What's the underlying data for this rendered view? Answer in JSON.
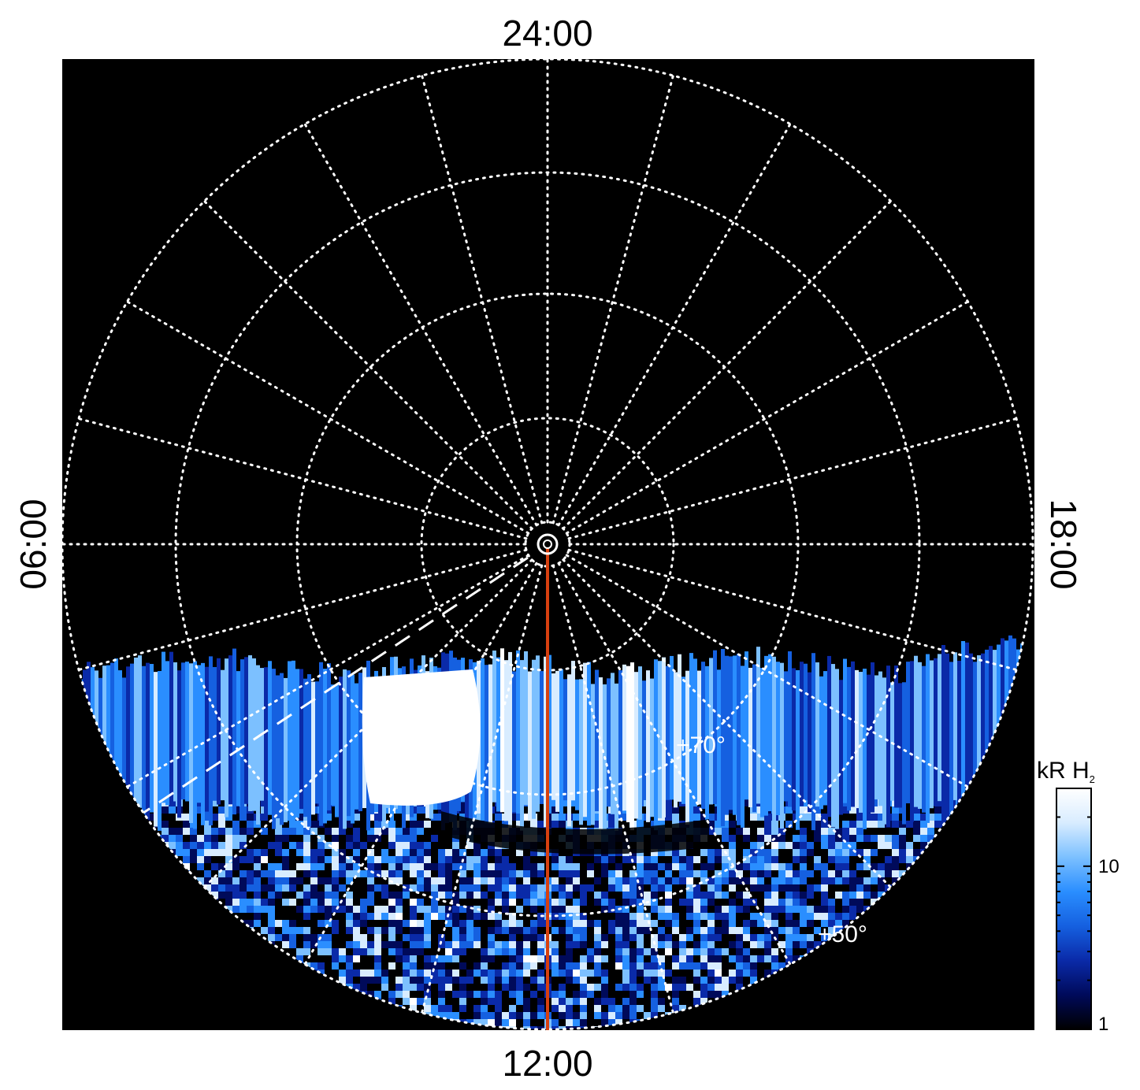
{
  "map": {
    "background": "#000000",
    "grid_color": "#ffffff",
    "meridian_color": "#d8400f",
    "local_time_labels": {
      "top": "24:00",
      "bottom": "12:00",
      "left": "06:00",
      "right": "18:00"
    },
    "latitude_labels": [
      "+70°",
      "+50°"
    ],
    "emission_colors": [
      "#000000",
      "#000a5a",
      "#0a2aa8",
      "#1560e0",
      "#2a8eff",
      "#7cc0ff",
      "#d8ecff",
      "#ffffff"
    ]
  },
  "colorbar": {
    "title": "kR H",
    "subscript": "2",
    "scale": "log",
    "range": [
      1,
      30
    ],
    "ticks": [
      "10",
      "1"
    ]
  }
}
